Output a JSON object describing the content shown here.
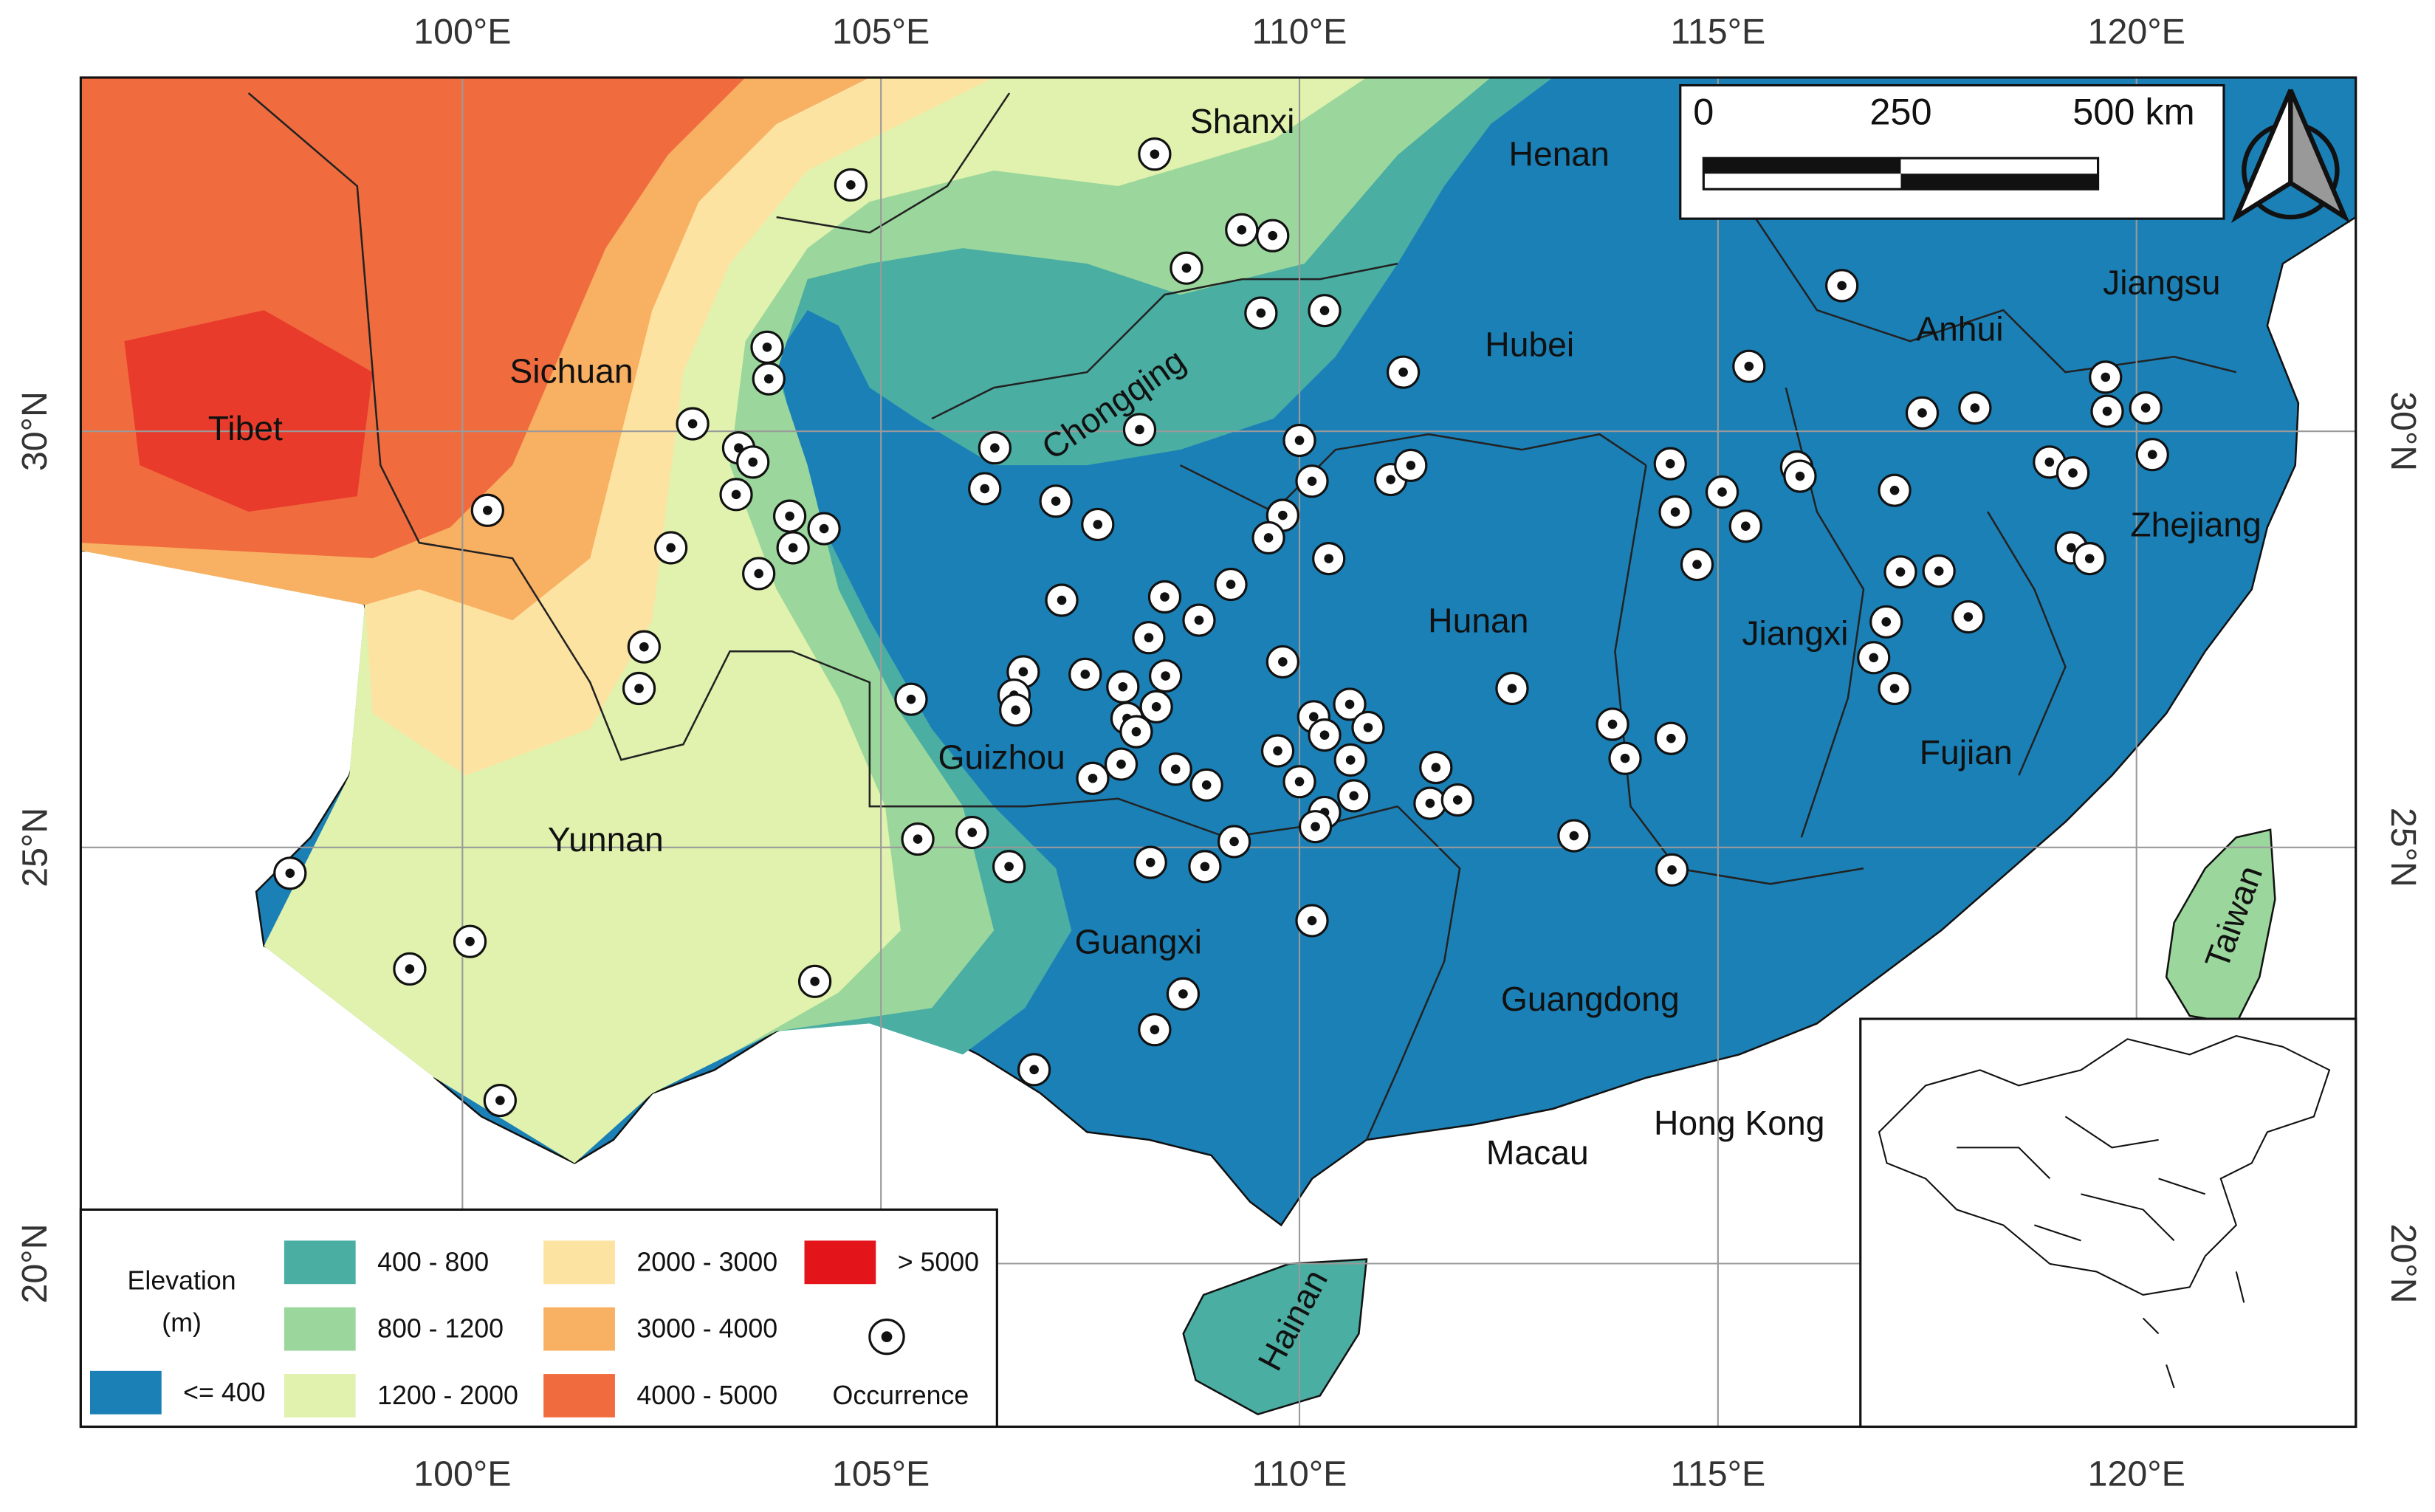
{
  "map": {
    "extent": {
      "lon": [
        95.44,
        122.62
      ],
      "lat": [
        18.04,
        34.25
      ]
    },
    "graticule": {
      "lon": [
        {
          "value": 100,
          "label": "100°E"
        },
        {
          "value": 105,
          "label": "105°E"
        },
        {
          "value": 110,
          "label": "110°E"
        },
        {
          "value": 115,
          "label": "115°E"
        },
        {
          "value": 120,
          "label": "120°E"
        }
      ],
      "lat": [
        {
          "value": 30,
          "label": "30°N"
        },
        {
          "value": 25,
          "label": "25°N"
        },
        {
          "value": 20,
          "label": "20°N"
        }
      ]
    },
    "places": [
      "Tibet",
      "Sichuan",
      "Shanxi",
      "Henan",
      "Hubei",
      "Chongqing",
      "Anhui",
      "Jiangsu",
      "Zhejiang",
      "Hunan",
      "Jiangxi",
      "Guizhou",
      "Fujian",
      "Yunnan",
      "Guangxi",
      "Guangdong",
      "Hong Kong",
      "Macau",
      "Hainan",
      "Taiwan"
    ],
    "scale_bar": [
      "0",
      "250",
      "500 km"
    ],
    "legend": {
      "title": [
        "Elevation",
        "(m)"
      ],
      "classes": [
        {
          "label": "<= 400",
          "color": "#1b80b6"
        },
        {
          "label": "400 - 800",
          "color": "#4aaea2"
        },
        {
          "label": "800 - 1200",
          "color": "#9bd79c"
        },
        {
          "label": "1200 - 2000",
          "color": "#e0f2ad"
        },
        {
          "label": "2000 - 3000",
          "color": "#fde3a2"
        },
        {
          "label": "3000 - 4000",
          "color": "#f8b063"
        },
        {
          "label": "4000 - 5000",
          "color": "#f06c3e"
        },
        {
          "label": "> 5000",
          "color": "#e4141b"
        }
      ],
      "occurrence": "Occurrence"
    },
    "occurrences": [
      {
        "lon": 104.64,
        "lat": 32.96
      },
      {
        "lon": 108.27,
        "lat": 33.33
      },
      {
        "lon": 109.31,
        "lat": 32.42
      },
      {
        "lon": 109.68,
        "lat": 32.35
      },
      {
        "lon": 108.65,
        "lat": 31.96
      },
      {
        "lon": 109.54,
        "lat": 31.42
      },
      {
        "lon": 110.3,
        "lat": 31.45
      },
      {
        "lon": 103.64,
        "lat": 31.01
      },
      {
        "lon": 103.66,
        "lat": 30.63
      },
      {
        "lon": 111.24,
        "lat": 30.71
      },
      {
        "lon": 102.75,
        "lat": 30.09
      },
      {
        "lon": 108.09,
        "lat": 30.02
      },
      {
        "lon": 106.36,
        "lat": 29.8
      },
      {
        "lon": 110.0,
        "lat": 29.89
      },
      {
        "lon": 103.3,
        "lat": 29.8
      },
      {
        "lon": 103.47,
        "lat": 29.63
      },
      {
        "lon": 100.3,
        "lat": 29.05
      },
      {
        "lon": 106.24,
        "lat": 29.31
      },
      {
        "lon": 103.27,
        "lat": 29.24
      },
      {
        "lon": 107.09,
        "lat": 29.16
      },
      {
        "lon": 110.15,
        "lat": 29.4
      },
      {
        "lon": 111.09,
        "lat": 29.42
      },
      {
        "lon": 111.33,
        "lat": 29.59
      },
      {
        "lon": 103.91,
        "lat": 28.98
      },
      {
        "lon": 104.32,
        "lat": 28.83
      },
      {
        "lon": 103.95,
        "lat": 28.6
      },
      {
        "lon": 107.59,
        "lat": 28.88
      },
      {
        "lon": 109.8,
        "lat": 28.99
      },
      {
        "lon": 109.63,
        "lat": 28.72
      },
      {
        "lon": 102.49,
        "lat": 28.6
      },
      {
        "lon": 110.35,
        "lat": 28.47
      },
      {
        "lon": 103.54,
        "lat": 28.29
      },
      {
        "lon": 109.18,
        "lat": 28.16
      },
      {
        "lon": 107.16,
        "lat": 27.97
      },
      {
        "lon": 108.39,
        "lat": 28.01
      },
      {
        "lon": 108.8,
        "lat": 27.73
      },
      {
        "lon": 108.2,
        "lat": 27.52
      },
      {
        "lon": 102.17,
        "lat": 27.41
      },
      {
        "lon": 102.11,
        "lat": 26.91
      },
      {
        "lon": 109.8,
        "lat": 27.23
      },
      {
        "lon": 107.44,
        "lat": 27.08
      },
      {
        "lon": 108.4,
        "lat": 27.06
      },
      {
        "lon": 107.89,
        "lat": 26.93
      },
      {
        "lon": 106.7,
        "lat": 27.11
      },
      {
        "lon": 106.59,
        "lat": 26.83
      },
      {
        "lon": 106.61,
        "lat": 26.65
      },
      {
        "lon": 105.36,
        "lat": 26.78
      },
      {
        "lon": 108.29,
        "lat": 26.69
      },
      {
        "lon": 107.94,
        "lat": 26.55
      },
      {
        "lon": 108.05,
        "lat": 26.39
      },
      {
        "lon": 110.17,
        "lat": 26.57
      },
      {
        "lon": 110.6,
        "lat": 26.72
      },
      {
        "lon": 110.82,
        "lat": 26.44
      },
      {
        "lon": 110.3,
        "lat": 26.35
      },
      {
        "lon": 109.74,
        "lat": 26.16
      },
      {
        "lon": 110.61,
        "lat": 26.05
      },
      {
        "lon": 107.87,
        "lat": 26.0
      },
      {
        "lon": 108.52,
        "lat": 25.94
      },
      {
        "lon": 107.53,
        "lat": 25.83
      },
      {
        "lon": 110.0,
        "lat": 25.79
      },
      {
        "lon": 108.89,
        "lat": 25.75
      },
      {
        "lon": 110.65,
        "lat": 25.62
      },
      {
        "lon": 110.3,
        "lat": 25.42
      },
      {
        "lon": 110.19,
        "lat": 25.25
      },
      {
        "lon": 111.63,
        "lat": 25.96
      },
      {
        "lon": 111.56,
        "lat": 25.53
      },
      {
        "lon": 111.89,
        "lat": 25.57
      },
      {
        "lon": 112.54,
        "lat": 26.91
      },
      {
        "lon": 113.74,
        "lat": 26.48
      },
      {
        "lon": 113.89,
        "lat": 26.07
      },
      {
        "lon": 114.44,
        "lat": 26.31
      },
      {
        "lon": 113.28,
        "lat": 25.14
      },
      {
        "lon": 114.45,
        "lat": 24.73
      },
      {
        "lon": 109.22,
        "lat": 25.07
      },
      {
        "lon": 108.22,
        "lat": 24.82
      },
      {
        "lon": 108.87,
        "lat": 24.77
      },
      {
        "lon": 106.53,
        "lat": 24.77
      },
      {
        "lon": 106.09,
        "lat": 25.18
      },
      {
        "lon": 105.44,
        "lat": 25.1
      },
      {
        "lon": 110.15,
        "lat": 24.12
      },
      {
        "lon": 108.61,
        "lat": 23.24
      },
      {
        "lon": 108.27,
        "lat": 22.81
      },
      {
        "lon": 106.83,
        "lat": 22.33
      },
      {
        "lon": 104.21,
        "lat": 23.39
      },
      {
        "lon": 100.09,
        "lat": 23.87
      },
      {
        "lon": 99.37,
        "lat": 23.54
      },
      {
        "lon": 100.45,
        "lat": 21.96
      },
      {
        "lon": 97.94,
        "lat": 24.69
      },
      {
        "lon": 114.43,
        "lat": 29.61
      },
      {
        "lon": 114.49,
        "lat": 29.03
      },
      {
        "lon": 115.05,
        "lat": 29.27
      },
      {
        "lon": 115.33,
        "lat": 28.86
      },
      {
        "lon": 114.75,
        "lat": 28.4
      },
      {
        "lon": 115.37,
        "lat": 30.78
      },
      {
        "lon": 116.48,
        "lat": 31.75
      },
      {
        "lon": 115.94,
        "lat": 29.57
      },
      {
        "lon": 115.98,
        "lat": 29.46
      },
      {
        "lon": 117.11,
        "lat": 29.29
      },
      {
        "lon": 117.44,
        "lat": 30.22
      },
      {
        "lon": 118.07,
        "lat": 30.28
      },
      {
        "lon": 117.18,
        "lat": 28.31
      },
      {
        "lon": 117.64,
        "lat": 28.32
      },
      {
        "lon": 117.01,
        "lat": 27.71
      },
      {
        "lon": 116.86,
        "lat": 27.28
      },
      {
        "lon": 117.11,
        "lat": 26.91
      },
      {
        "lon": 117.99,
        "lat": 27.77
      },
      {
        "lon": 118.96,
        "lat": 29.63
      },
      {
        "lon": 119.24,
        "lat": 29.5
      },
      {
        "lon": 119.63,
        "lat": 30.65
      },
      {
        "lon": 119.65,
        "lat": 30.24
      },
      {
        "lon": 120.11,
        "lat": 30.28
      },
      {
        "lon": 120.19,
        "lat": 29.72
      },
      {
        "lon": 119.22,
        "lat": 28.6
      },
      {
        "lon": 119.44,
        "lat": 28.47
      }
    ]
  }
}
